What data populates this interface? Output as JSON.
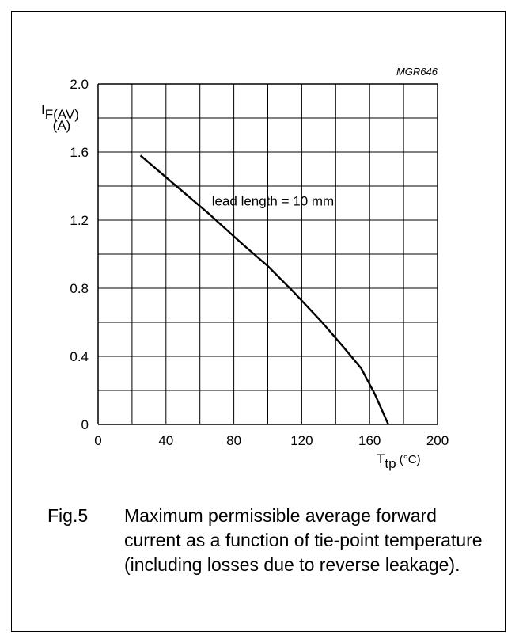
{
  "chart_data": {
    "type": "line",
    "figure_code": "MGR646",
    "xlabel": "T",
    "xlabel_sub": "tp",
    "xlabel_unit": " (°C)",
    "ylabel": "I",
    "ylabel_sub": "F(AV)",
    "ylabel_unit": "(A)",
    "xlim": [
      0,
      200
    ],
    "ylim": [
      0,
      2.0
    ],
    "x_ticks": [
      0,
      40,
      80,
      120,
      160,
      200
    ],
    "x_tick_labels": [
      "0",
      "40",
      "80",
      "120",
      "160",
      "200"
    ],
    "y_ticks": [
      0,
      0.4,
      0.8,
      1.2,
      1.6,
      2.0
    ],
    "y_tick_labels": [
      "0",
      "0.4",
      "0.8",
      "1.2",
      "1.6",
      "2.0"
    ],
    "grid": true,
    "series": [
      {
        "x": [
          25,
          45,
          65,
          85,
          100,
          115,
          132,
          145,
          155,
          163,
          171
        ],
        "y": [
          1.58,
          1.41,
          1.24,
          1.06,
          0.93,
          0.78,
          0.6,
          0.45,
          0.33,
          0.18,
          0.0
        ]
      }
    ],
    "annotations": [
      {
        "text": "lead length = 10 mm",
        "x": 67,
        "y": 1.24
      }
    ]
  },
  "caption": {
    "number": "Fig.5",
    "text": "Maximum permissible average forward current as a function of tie-point temperature (including losses due to reverse leakage)."
  }
}
